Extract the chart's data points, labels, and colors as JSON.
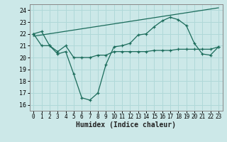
{
  "title": "",
  "xlabel": "Humidex (Indice chaleur)",
  "background_color": "#cce8e8",
  "line_color": "#1a6b5a",
  "grid_color": "#b0d8d8",
  "xlim": [
    -0.5,
    23.5
  ],
  "ylim": [
    15.5,
    24.5
  ],
  "yticks": [
    16,
    17,
    18,
    19,
    20,
    21,
    22,
    23,
    24
  ],
  "xticks": [
    0,
    1,
    2,
    3,
    4,
    5,
    6,
    7,
    8,
    9,
    10,
    11,
    12,
    13,
    14,
    15,
    16,
    17,
    18,
    19,
    20,
    21,
    22,
    23
  ],
  "line1_x": [
    0,
    1,
    2,
    3,
    4,
    5,
    6,
    7,
    8,
    9,
    10,
    11,
    12,
    13,
    14,
    15,
    16,
    17,
    18,
    19,
    20,
    21,
    22,
    23
  ],
  "line1_y": [
    22.0,
    22.2,
    21.0,
    20.3,
    20.5,
    18.6,
    16.6,
    16.4,
    17.0,
    19.4,
    20.9,
    21.0,
    21.2,
    21.9,
    22.0,
    22.6,
    23.1,
    23.4,
    23.2,
    22.7,
    21.2,
    20.3,
    20.2,
    20.9
  ],
  "line2_x": [
    0,
    1,
    2,
    3,
    4,
    5,
    6,
    7,
    8,
    9,
    10,
    11,
    12,
    13,
    14,
    15,
    16,
    17,
    18,
    19,
    20,
    21,
    22,
    23
  ],
  "line2_y": [
    22.0,
    21.0,
    21.0,
    20.5,
    21.0,
    20.0,
    20.0,
    20.0,
    20.2,
    20.2,
    20.5,
    20.5,
    20.5,
    20.5,
    20.5,
    20.6,
    20.6,
    20.6,
    20.7,
    20.7,
    20.7,
    20.7,
    20.7,
    20.9
  ],
  "line3_x": [
    0,
    23
  ],
  "line3_y": [
    21.8,
    24.2
  ]
}
